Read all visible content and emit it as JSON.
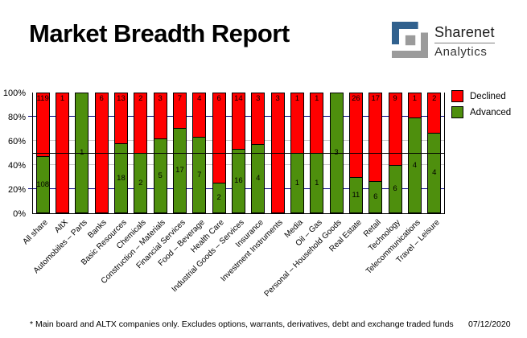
{
  "header": {
    "title": "Market Breadth Report",
    "logo": {
      "line1": "Sharenet",
      "line2": "Analytics",
      "blue": "#31618e",
      "gray": "#9b9b9b"
    }
  },
  "chart_data": {
    "type": "bar",
    "variant": "stacked-percent-column",
    "title": "",
    "xlabel": "",
    "ylabel": "",
    "ylim": [
      0,
      100
    ],
    "yticks_percent": [
      0,
      20,
      40,
      60,
      80,
      100
    ],
    "grid": {
      "navy_at": [
        20,
        80
      ],
      "silver_at": [
        40,
        60
      ],
      "black_line_at": 50,
      "navy_color": "#000080",
      "silver_color": "#c9c9c9"
    },
    "legend_position": "top-right",
    "categories": [
      "All share",
      "AltX",
      "Automobiles – Parts",
      "Banks",
      "Basic Resources",
      "Chemicals",
      "Construction – Materials",
      "Financial Services",
      "Food – Beverage",
      "Health Care",
      "Industrial Goods – Services",
      "Insurance",
      "Investment Instruments",
      "Media",
      "Oil – Gas",
      "Personal – Household Goods",
      "Real Estate",
      "Retail",
      "Technology",
      "Telecommunications",
      "Travel – Leisure"
    ],
    "series": [
      {
        "name": "Declined",
        "color": "#ff0000",
        "values": [
          119,
          1,
          0,
          6,
          13,
          2,
          3,
          7,
          4,
          6,
          14,
          3,
          3,
          1,
          1,
          0,
          26,
          17,
          9,
          1,
          2
        ]
      },
      {
        "name": "Advanced",
        "color": "#4e8f0d",
        "values": [
          108,
          0,
          1,
          0,
          18,
          2,
          5,
          17,
          7,
          2,
          16,
          4,
          0,
          1,
          1,
          3,
          11,
          6,
          6,
          4,
          4
        ]
      }
    ]
  },
  "legend": {
    "items": [
      {
        "label": "Declined",
        "color": "#ff0000"
      },
      {
        "label": "Advanced",
        "color": "#4e8f0d"
      }
    ]
  },
  "footer": {
    "note": "* Main board and ALTX companies only. Excludes options, warrants, derivatives, debt and exchange traded funds",
    "date": "07/12/2020"
  }
}
